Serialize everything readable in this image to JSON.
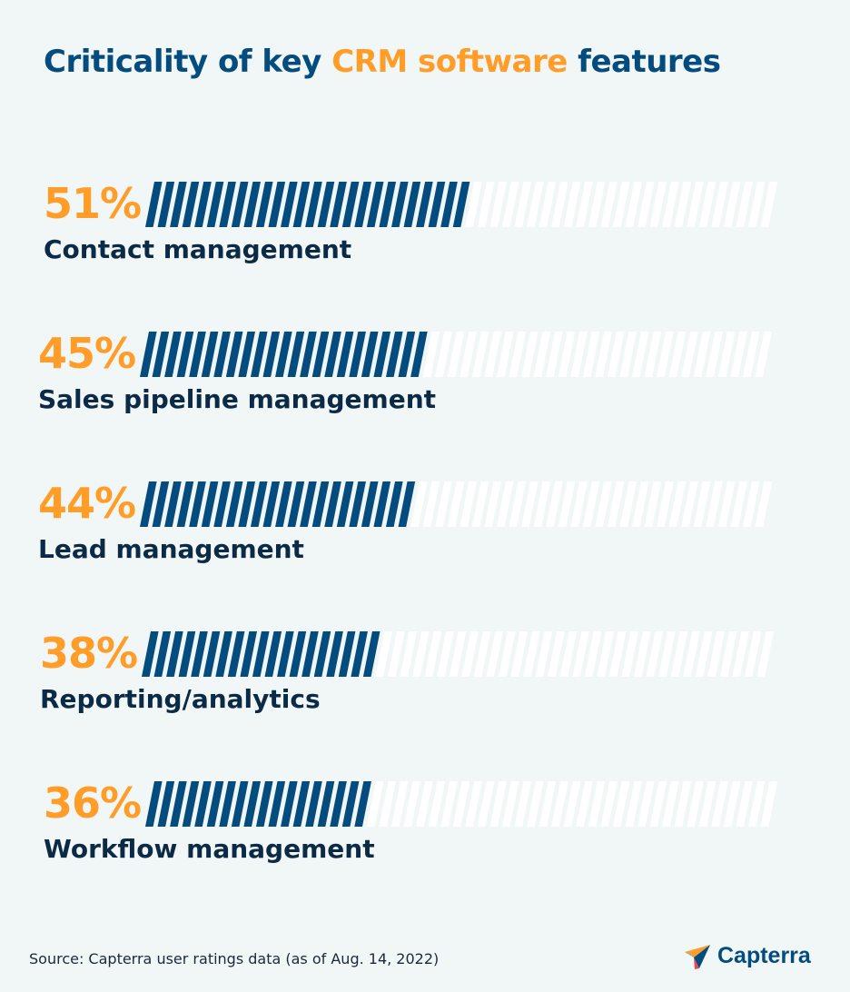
{
  "title": {
    "prefix": "Criticality of key ",
    "highlight": "CRM software",
    "suffix": " features"
  },
  "chart_data": {
    "type": "bar",
    "title": "Criticality of key CRM software features",
    "categories": [
      "Contact management",
      "Sales pipeline management",
      "Lead management",
      "Reporting/analytics",
      "Workflow management"
    ],
    "values": [
      51,
      45,
      44,
      38,
      36
    ],
    "value_labels": [
      "51%",
      "45%",
      "44%",
      "38%",
      "36%"
    ],
    "unit": "%",
    "xlim": [
      0,
      100
    ],
    "grid": false,
    "colors": {
      "filled": "#044c7e",
      "empty": "#ffffff",
      "value_label": "#ff9d28"
    }
  },
  "source": "Source: Capterra user ratings data (as of Aug. 14, 2022)",
  "brand": {
    "name": "Capterra"
  }
}
